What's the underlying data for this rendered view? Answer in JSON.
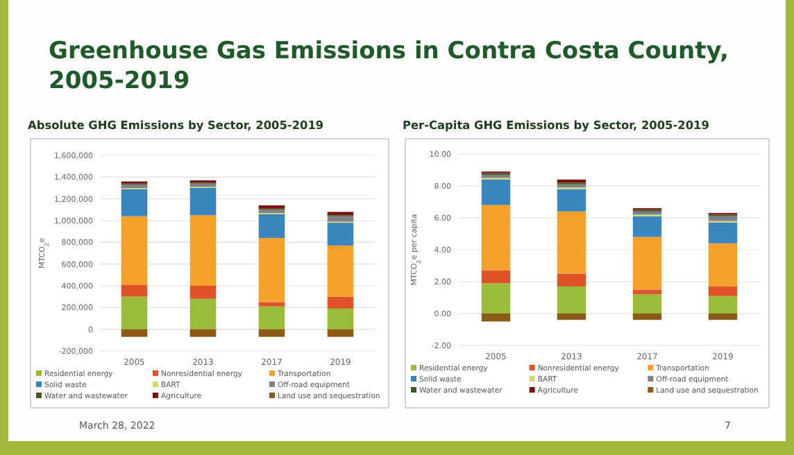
{
  "chart_data": [
    {
      "type": "bar",
      "stacked": true,
      "title": "Absolute GHG Emissions by Sector, 2005-2019",
      "ylabel": "MTCO$_{2}$e",
      "categories": [
        "2005",
        "2013",
        "2017",
        "2019"
      ],
      "ylim": [
        -200000,
        1600000
      ],
      "yticks": [
        {
          "value": -200000,
          "label": "-200,000"
        },
        {
          "value": 0,
          "label": "0"
        },
        {
          "value": 200000,
          "label": "200,000"
        },
        {
          "value": 400000,
          "label": "400,000"
        },
        {
          "value": 600000,
          "label": "600,000"
        },
        {
          "value": 800000,
          "label": "800,000"
        },
        {
          "value": 1000000,
          "label": "1,000,000"
        },
        {
          "value": 1200000,
          "label": "1,200,000"
        },
        {
          "value": 1400000,
          "label": "1,400,000"
        },
        {
          "value": 1600000,
          "label": "1,600,000"
        }
      ],
      "grid": "y",
      "legend": "bottom",
      "annotations": [
        "Greenhouse Gas Emissions in Contra Costa County, 2005-2019",
        "March 28, 2022"
      ],
      "series": [
        {
          "name": "Residential energy",
          "color": "#9bbb3b",
          "values": [
            300000,
            280000,
            210000,
            190000
          ]
        },
        {
          "name": "Nonresidential energy",
          "color": "#e0522a",
          "values": [
            110000,
            120000,
            40000,
            110000
          ]
        },
        {
          "name": "Transportation",
          "color": "#f7a12d",
          "values": [
            630000,
            650000,
            590000,
            470000
          ]
        },
        {
          "name": "Solid waste",
          "color": "#3a85be",
          "values": [
            250000,
            250000,
            220000,
            210000
          ]
        },
        {
          "name": "BART",
          "color": "#d5d96a",
          "values": [
            10000,
            10000,
            10000,
            10000
          ]
        },
        {
          "name": "Off-road equipment",
          "color": "#7f7f8a",
          "values": [
            30000,
            30000,
            30000,
            50000
          ]
        },
        {
          "name": "Water and wastewater",
          "color": "#3f5a1e",
          "values": [
            10000,
            10000,
            10000,
            10000
          ]
        },
        {
          "name": "Agriculture",
          "color": "#7a1414",
          "values": [
            20000,
            20000,
            30000,
            30000
          ]
        },
        {
          "name": "Land use and sequestration",
          "color": "#8b5a16",
          "values": [
            -70000,
            -70000,
            -70000,
            -70000
          ]
        }
      ]
    },
    {
      "type": "bar",
      "stacked": true,
      "title": "Per-Capita GHG Emissions by Sector, 2005-2019",
      "ylabel": "MTCO$_{2}$e per capita",
      "categories": [
        "2005",
        "2013",
        "2017",
        "2019"
      ],
      "ylim": [
        -2,
        10
      ],
      "yticks": [
        {
          "value": -2,
          "label": "-2.00"
        },
        {
          "value": 0,
          "label": "0.00"
        },
        {
          "value": 2,
          "label": "2.00"
        },
        {
          "value": 4,
          "label": "4.00"
        },
        {
          "value": 6,
          "label": "6.00"
        },
        {
          "value": 8,
          "label": "8.00"
        },
        {
          "value": 10,
          "label": "10.00"
        }
      ],
      "grid": "y",
      "legend": "bottom",
      "annotations": [
        "7"
      ],
      "series": [
        {
          "name": "Residential energy",
          "color": "#9bbb3b",
          "values": [
            1.9,
            1.7,
            1.2,
            1.1
          ]
        },
        {
          "name": "Nonresidential energy",
          "color": "#e0522a",
          "values": [
            0.8,
            0.8,
            0.3,
            0.6
          ]
        },
        {
          "name": "Transportation",
          "color": "#f7a12d",
          "values": [
            4.1,
            3.9,
            3.3,
            2.7
          ]
        },
        {
          "name": "Solid waste",
          "color": "#3a85be",
          "values": [
            1.6,
            1.4,
            1.3,
            1.3
          ]
        },
        {
          "name": "BART",
          "color": "#d5d96a",
          "values": [
            0.1,
            0.1,
            0.1,
            0.1
          ]
        },
        {
          "name": "Off-road equipment",
          "color": "#7f7f8a",
          "values": [
            0.2,
            0.2,
            0.2,
            0.3
          ]
        },
        {
          "name": "Water and wastewater",
          "color": "#3f5a1e",
          "values": [
            0.1,
            0.1,
            0.1,
            0.1
          ]
        },
        {
          "name": "Agriculture",
          "color": "#7a1414",
          "values": [
            0.1,
            0.2,
            0.1,
            0.1
          ]
        },
        {
          "name": "Land use and sequestration",
          "color": "#8b5a16",
          "values": [
            -0.5,
            -0.4,
            -0.4,
            -0.4
          ]
        }
      ]
    }
  ]
}
